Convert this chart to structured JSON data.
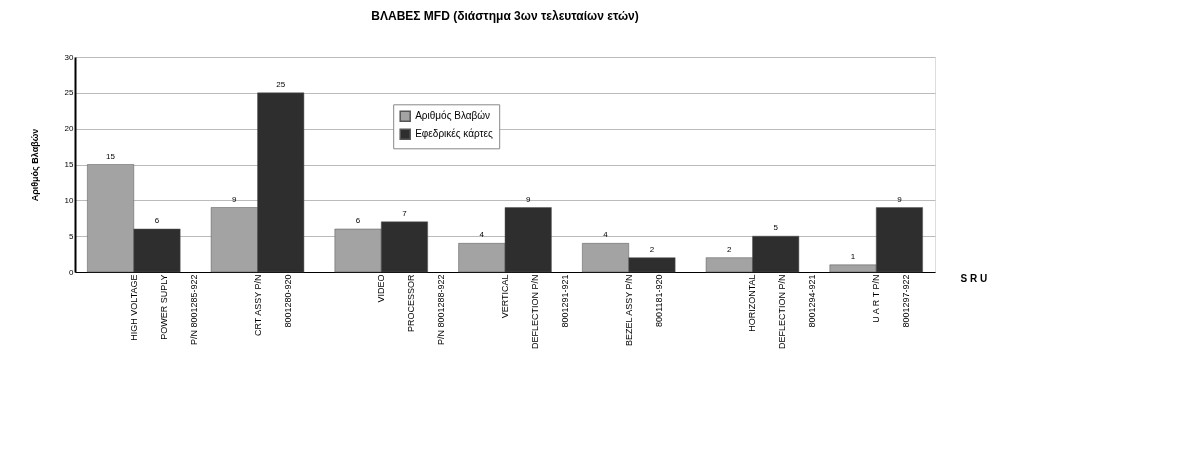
{
  "chart_data": {
    "type": "bar",
    "title": "ΒΛΑΒΕΣ MFD (διάστημα 3ων τελευταίων ετών)",
    "xlabel": "S R U",
    "ylabel": "Αριθμός Βλαβών",
    "categories": [
      "HIGH VOLTAGE\nPOWER SUPLY\nP/N 8001285-922",
      "CRT ASSY  P/N\n8001280-920",
      "VIDEO\nPROCESSOR\nP/N 8001288-922",
      "VERTICAL\nDEFLECTION  P/N\n8001291-921",
      "BEZEL ASSY  P/N\n8001181-920",
      "HORIZONTAL\nDEFLECTION  P/N\n8001294-921",
      "U A R T  P/N\n8001297-922"
    ],
    "series": [
      {
        "name": "Αριθμός Βλαβών",
        "color": "#a3a3a3",
        "values": [
          15,
          9,
          6,
          4,
          4,
          2,
          1
        ]
      },
      {
        "name": "Εφεδρικές κάρτες",
        "color": "#2e2e2e",
        "values": [
          6,
          25,
          7,
          9,
          2,
          5,
          9
        ]
      }
    ],
    "ylim": [
      0,
      30
    ],
    "yticks": [
      0,
      5,
      10,
      15,
      20,
      25,
      30
    ],
    "grid": "y",
    "legend": "top",
    "data_labels": true
  }
}
